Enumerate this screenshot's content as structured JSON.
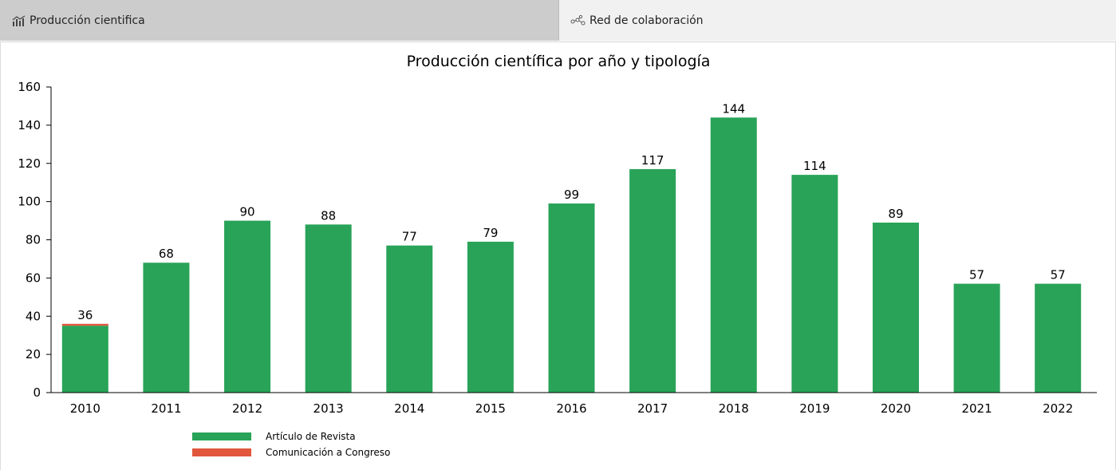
{
  "tabs": [
    {
      "label": "Producción cientifica",
      "icon": "bar-chart-icon",
      "active": true
    },
    {
      "label": "Red de colaboración",
      "icon": "network-icon",
      "active": false
    }
  ],
  "colors": {
    "articulo": "#28a358",
    "congreso": "#e0573b",
    "tab_active_bg": "#cccccc",
    "tab_inactive_bg": "#f1f1f1"
  },
  "chart_data": {
    "type": "bar",
    "stacked": true,
    "title": "Producción científica por año y tipología",
    "categories": [
      "2010",
      "2011",
      "2012",
      "2013",
      "2014",
      "2015",
      "2016",
      "2017",
      "2018",
      "2019",
      "2020",
      "2021",
      "2022"
    ],
    "series": [
      {
        "name": "Artículo de Revista",
        "values": [
          35,
          68,
          90,
          88,
          77,
          79,
          99,
          117,
          144,
          114,
          89,
          57,
          57
        ]
      },
      {
        "name": "Comunicación a Congreso",
        "values": [
          1,
          0,
          0,
          0,
          0,
          0,
          0,
          0,
          0,
          0,
          0,
          0,
          0
        ]
      }
    ],
    "totals": [
      36,
      68,
      90,
      88,
      77,
      79,
      99,
      117,
      144,
      114,
      89,
      57,
      57
    ],
    "ylim": [
      0,
      160
    ],
    "yticks": [
      0,
      20,
      40,
      60,
      80,
      100,
      120,
      140,
      160
    ],
    "grid": false,
    "legend_position": "bottom-left"
  }
}
